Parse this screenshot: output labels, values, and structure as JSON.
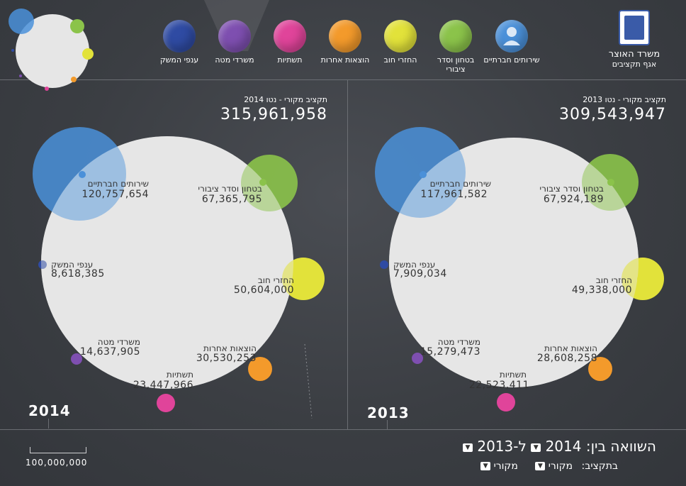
{
  "ministry": {
    "name": "משרד האוצר",
    "sub": "אגף תקציבים"
  },
  "legend": [
    {
      "label": "שירותים חברתיים",
      "color": "#4a90d9",
      "icon": "person-icon"
    },
    {
      "label": "בטחון וסדר ציבורי",
      "color": "#8bc34a"
    },
    {
      "label": "החזרי חוב",
      "color": "#e2e23a"
    },
    {
      "label": "הוצאות אחרות",
      "color": "#f39a2b"
    },
    {
      "label": "תשתיות",
      "color": "#e0449a"
    },
    {
      "label": "משרדי מטה",
      "color": "#7e4fb0"
    },
    {
      "label": "ענפי המשק",
      "color": "#2f4ba3"
    }
  ],
  "panels": {
    "left": {
      "year": "2014",
      "total_label": "תקציב מקורי - נטו 2014",
      "total_value": "315,961,958",
      "items": {
        "social": {
          "label": "שירותים חברתיים",
          "value": "120,757,654"
        },
        "security": {
          "label": "בטחון וסדר ציבורי",
          "value": "67,365,795"
        },
        "economy": {
          "label": "ענפי המשק",
          "value": "8,618,385"
        },
        "debt": {
          "label": "החזרי חוב",
          "value": "50,604,000"
        },
        "hq": {
          "label": "משרדי מטה",
          "value": "14,637,905"
        },
        "other": {
          "label": "הוצאות אחרות",
          "value": "30,530,253"
        },
        "infra": {
          "label": "תשתיות",
          "value": "23,447,966"
        }
      }
    },
    "right": {
      "year": "2013",
      "total_label": "תקציב מקורי - נטו 2013",
      "total_value": "309,543,947",
      "items": {
        "social": {
          "label": "שירותים חברתיים",
          "value": "117,961,582"
        },
        "security": {
          "label": "בטחון וסדר ציבורי",
          "value": "67,924,189"
        },
        "economy": {
          "label": "ענפי המשק",
          "value": "7,909,034"
        },
        "debt": {
          "label": "החזרי חוב",
          "value": "49,338,000"
        },
        "hq": {
          "label": "משרדי מטה",
          "value": "15,279,473"
        },
        "other": {
          "label": "הוצאות אחרות",
          "value": "28,608,258"
        },
        "infra": {
          "label": "תשתיות",
          "value": "22,523,411"
        }
      }
    }
  },
  "compare": {
    "prefix": "השוואה בין:",
    "year_a": "2014",
    "connector": "ל-",
    "year_b": "2013"
  },
  "budget_type": {
    "label": "בתקציב:",
    "option_a": "מקורי",
    "option_b": "מקורי"
  },
  "scale": {
    "value": "100,000,000"
  }
}
